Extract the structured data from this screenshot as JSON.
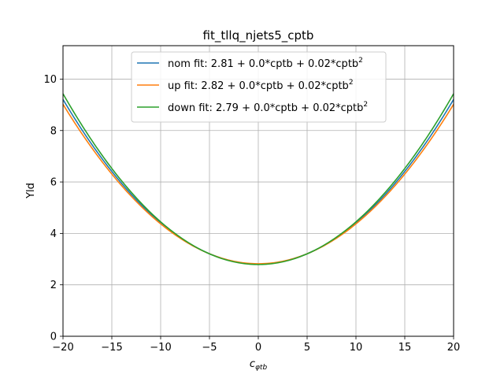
{
  "chart_data": {
    "type": "line",
    "title": "fit_tllq_njets5_cptb",
    "xlabel_main": "c",
    "xlabel_sub": "φtb",
    "ylabel": "Yld",
    "xlim": [
      -20,
      20
    ],
    "ylim": [
      0,
      11.3
    ],
    "xticks": [
      -20,
      -15,
      -10,
      -5,
      0,
      5,
      10,
      15,
      20
    ],
    "xtick_labels": [
      "−20",
      "−15",
      "−10",
      "−5",
      "0",
      "5",
      "10",
      "15",
      "20"
    ],
    "yticks": [
      0,
      2,
      4,
      6,
      8,
      10
    ],
    "ytick_labels": [
      "0",
      "2",
      "4",
      "6",
      "8",
      "10"
    ],
    "grid": true,
    "legend_position": "upper-center",
    "series": [
      {
        "name": "nom fit: 2.81 + 0.0*cptb + 0.02*cptb",
        "name_sup": "2",
        "color": "#1f77b4",
        "const": 2.81,
        "lin": 0.0,
        "quad": 0.016,
        "x": [
          -20,
          -15,
          -10,
          -5,
          0,
          5,
          10,
          15,
          20
        ],
        "y": [
          9.21,
          6.41,
          4.41,
          3.21,
          2.81,
          3.21,
          4.41,
          6.41,
          9.21
        ]
      },
      {
        "name": "up fit: 2.82 + 0.0*cptb + 0.02*cptb",
        "name_sup": "2",
        "color": "#ff7f0e",
        "const": 2.82,
        "lin": 0.0,
        "quad": 0.0155,
        "x": [
          -20,
          -15,
          -10,
          -5,
          0,
          5,
          10,
          15,
          20
        ],
        "y": [
          9.02,
          6.31,
          4.37,
          3.21,
          2.82,
          3.21,
          4.37,
          6.31,
          9.02
        ]
      },
      {
        "name": "down fit: 2.79 + 0.0*cptb + 0.02*cptb",
        "name_sup": "2",
        "color": "#2ca02c",
        "const": 2.79,
        "lin": 0.0,
        "quad": 0.0166,
        "x": [
          -20,
          -15,
          -10,
          -5,
          0,
          5,
          10,
          15,
          20
        ],
        "y": [
          9.43,
          6.53,
          4.45,
          3.21,
          2.79,
          3.21,
          4.45,
          6.53,
          9.43
        ]
      }
    ]
  }
}
